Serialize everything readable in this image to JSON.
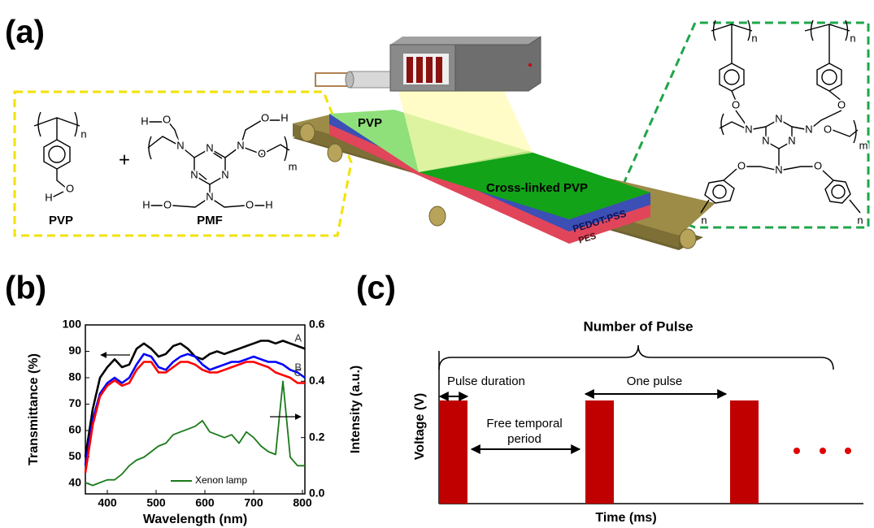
{
  "panel_a": {
    "label": "(a)",
    "pvp_layer": "PVP",
    "crosslinked_layer": "Cross-linked  PVP",
    "pedot_layer": "PEDOT:PSS",
    "pes_layer": "PES",
    "plus": "+",
    "pvp_name": "PVP",
    "pmf_name": "PMF",
    "pvp_atoms": [
      "n",
      "O",
      "H"
    ],
    "pmf_atoms": [
      "H",
      "O",
      "O",
      "H",
      "N",
      "N",
      "N",
      "N",
      "N",
      "N",
      "O",
      "H",
      "O",
      "O",
      "H",
      "m"
    ],
    "crosslinked_atoms": [
      "n",
      "n",
      "O",
      "O",
      "N",
      "N",
      "N",
      "N",
      "N",
      "O",
      "m",
      "N",
      "O",
      "O",
      "n",
      "n"
    ]
  },
  "chart_data": {
    "type": "line",
    "label": "(b)",
    "xlabel": "Wavelength (nm)",
    "ylabel": "Transmittance (%)",
    "y2label": "Intensity (a.u.)",
    "x": [
      355,
      370,
      385,
      400,
      415,
      430,
      445,
      460,
      475,
      490,
      505,
      520,
      535,
      550,
      565,
      580,
      595,
      610,
      625,
      640,
      655,
      670,
      685,
      700,
      715,
      730,
      745,
      760,
      775,
      790,
      805
    ],
    "series": [
      {
        "name": "A",
        "color": "#000000",
        "values": [
          50,
          68,
          80,
          84,
          87,
          84,
          85,
          91,
          93,
          91,
          88,
          89,
          92,
          93,
          91,
          88,
          87,
          89,
          90,
          89,
          90,
          91,
          92,
          93,
          94,
          94,
          93,
          94,
          93,
          92,
          91
        ]
      },
      {
        "name": "B",
        "color": "#0000ff",
        "values": [
          47,
          64,
          74,
          78,
          80,
          78,
          80,
          85,
          89,
          88,
          84,
          83,
          86,
          88,
          89,
          88,
          85,
          83,
          84,
          85,
          86,
          86,
          87,
          88,
          87,
          86,
          86,
          85,
          83,
          82,
          80
        ]
      },
      {
        "name": "C",
        "color": "#ff0000",
        "values": [
          44,
          62,
          73,
          77,
          79,
          77,
          78,
          83,
          86,
          86,
          82,
          82,
          84,
          86,
          86,
          85,
          83,
          82,
          82,
          83,
          84,
          85,
          86,
          86,
          85,
          84,
          82,
          81,
          80,
          78,
          78
        ]
      },
      {
        "name": "Xenon lamp",
        "color": "#1a7a1a",
        "axis": "y2",
        "values": [
          0.04,
          0.03,
          0.04,
          0.05,
          0.05,
          0.07,
          0.1,
          0.12,
          0.13,
          0.15,
          0.17,
          0.18,
          0.21,
          0.22,
          0.23,
          0.24,
          0.26,
          0.22,
          0.21,
          0.2,
          0.21,
          0.18,
          0.22,
          0.2,
          0.17,
          0.15,
          0.14,
          0.4,
          0.13,
          0.1,
          0.1
        ]
      }
    ],
    "xlim": [
      355,
      805
    ],
    "xticks": [
      400,
      500,
      600,
      700,
      800
    ],
    "ylim": [
      36,
      100
    ],
    "yticks": [
      40,
      50,
      60,
      70,
      80,
      90,
      100
    ],
    "y2lim": [
      0,
      0.6
    ],
    "y2ticks": [
      {
        "value": 0,
        "label": "0.0"
      },
      0.2,
      0.4,
      0.6
    ],
    "legend": "bottom"
  },
  "panel_c": {
    "label": "(c)",
    "title": "Number of Pulse",
    "pulse_duration": "Pulse duration",
    "one_pulse": "One pulse",
    "free_period": [
      "Free temporal",
      "period"
    ],
    "ylabel": "Voltage (V)",
    "xlabel": "Time (ms)"
  }
}
